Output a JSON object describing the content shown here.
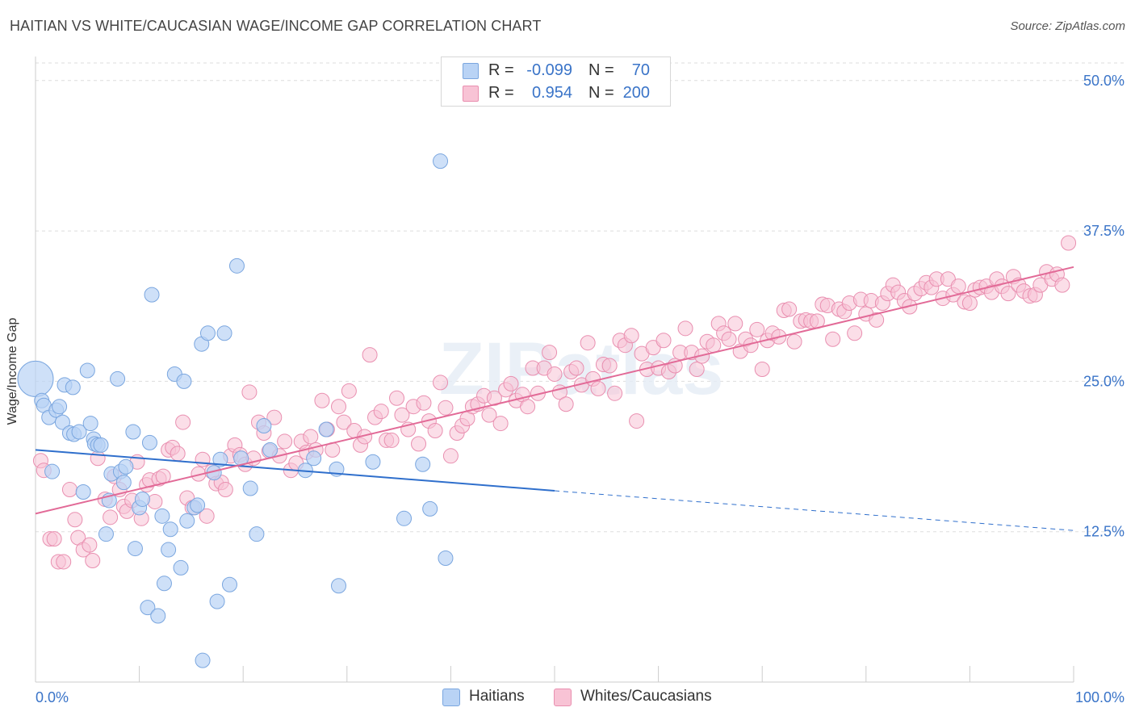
{
  "header": {
    "title": "HAITIAN VS WHITE/CAUCASIAN WAGE/INCOME GAP CORRELATION CHART",
    "source": "Source: ZipAtlas.com"
  },
  "watermark": "ZIPatlas",
  "legend": {
    "rows": [
      {
        "r_label": "R =",
        "r_value": "-0.099",
        "n_label": "N =",
        "n_value": "70"
      },
      {
        "r_label": "R =",
        "r_value": "0.954",
        "n_label": "N =",
        "n_value": "200"
      }
    ]
  },
  "bottom_legend": {
    "haitians": "Haitians",
    "whites": "Whites/Caucasians"
  },
  "colors": {
    "haitians_fill": "#b9d3f5",
    "haitians_stroke": "#7aa6df",
    "haitians_line": "#2f6fcc",
    "whites_fill": "#f8c3d5",
    "whites_stroke": "#e98fb0",
    "whites_line": "#e26a97",
    "axis_value": "#3a74c8",
    "grid": "#dddddd"
  },
  "chart_data": {
    "type": "scatter",
    "title": "HAITIAN VS WHITE/CAUCASIAN WAGE/INCOME GAP CORRELATION CHART",
    "xlabel": "",
    "ylabel": "Wage/Income Gap",
    "xlim": [
      0,
      100
    ],
    "ylim": [
      0,
      52
    ],
    "x_tick_labels": [
      "0.0%",
      "100.0%"
    ],
    "y_ticks": [
      12.5,
      25.0,
      37.5,
      50.0
    ],
    "y_tick_labels": [
      "12.5%",
      "25.0%",
      "37.5%",
      "50.0%"
    ],
    "grid": true,
    "legend_position": "top-center",
    "series": [
      {
        "name": "Haitians",
        "r": -0.099,
        "n": 70,
        "trend": {
          "x0": 0,
          "y0": 19.3,
          "x1": 50,
          "y1": 15.9,
          "dashed_to_x": 100,
          "dashed_y1": 12.6
        },
        "points": [
          [
            0,
            25.2
          ],
          [
            0.6,
            23.4
          ],
          [
            0.8,
            23.0
          ],
          [
            1.3,
            22.0
          ],
          [
            1.6,
            17.5
          ],
          [
            2.0,
            22.6
          ],
          [
            2.3,
            22.9
          ],
          [
            2.6,
            21.6
          ],
          [
            2.8,
            24.7
          ],
          [
            3.3,
            20.7
          ],
          [
            3.6,
            24.5
          ],
          [
            3.7,
            20.6
          ],
          [
            4.2,
            20.8
          ],
          [
            4.6,
            15.8
          ],
          [
            5.0,
            25.9
          ],
          [
            5.3,
            21.5
          ],
          [
            5.6,
            20.2
          ],
          [
            5.7,
            19.8
          ],
          [
            6.0,
            19.7
          ],
          [
            6.3,
            19.7
          ],
          [
            6.8,
            12.3
          ],
          [
            7.1,
            15.1
          ],
          [
            7.3,
            17.3
          ],
          [
            7.9,
            25.2
          ],
          [
            8.2,
            17.5
          ],
          [
            8.5,
            16.6
          ],
          [
            8.7,
            17.9
          ],
          [
            9.4,
            20.8
          ],
          [
            9.6,
            11.1
          ],
          [
            10.0,
            14.5
          ],
          [
            10.3,
            15.2
          ],
          [
            10.8,
            6.2
          ],
          [
            11.0,
            19.9
          ],
          [
            11.2,
            32.2
          ],
          [
            11.8,
            5.5
          ],
          [
            12.2,
            13.8
          ],
          [
            12.4,
            8.2
          ],
          [
            12.8,
            11.0
          ],
          [
            13.0,
            12.7
          ],
          [
            13.4,
            25.6
          ],
          [
            14.0,
            9.5
          ],
          [
            14.3,
            25.0
          ],
          [
            14.6,
            13.4
          ],
          [
            15.3,
            14.5
          ],
          [
            15.6,
            14.7
          ],
          [
            16.0,
            28.1
          ],
          [
            16.1,
            1.8
          ],
          [
            16.6,
            29.0
          ],
          [
            17.2,
            17.4
          ],
          [
            17.5,
            6.7
          ],
          [
            17.8,
            18.5
          ],
          [
            18.2,
            29.0
          ],
          [
            18.7,
            8.1
          ],
          [
            19.4,
            34.6
          ],
          [
            19.8,
            18.6
          ],
          [
            20.7,
            16.1
          ],
          [
            21.3,
            12.3
          ],
          [
            22.0,
            21.3
          ],
          [
            22.6,
            19.3
          ],
          [
            26.0,
            17.6
          ],
          [
            26.8,
            18.6
          ],
          [
            28.0,
            21.0
          ],
          [
            29.0,
            17.7
          ],
          [
            29.2,
            8.0
          ],
          [
            32.5,
            18.3
          ],
          [
            35.5,
            13.6
          ],
          [
            37.3,
            18.1
          ],
          [
            38.0,
            14.4
          ],
          [
            39.5,
            10.3
          ],
          [
            39.0,
            43.3
          ]
        ]
      },
      {
        "name": "Whites/Caucasians",
        "r": 0.954,
        "n": 200,
        "trend": {
          "x0": 0,
          "y0": 14.0,
          "x1": 100,
          "y1": 34.5
        },
        "points": [
          [
            0.5,
            18.4
          ],
          [
            0.8,
            17.6
          ],
          [
            1.4,
            11.9
          ],
          [
            1.8,
            11.9
          ],
          [
            2.2,
            10.0
          ],
          [
            2.7,
            10.0
          ],
          [
            3.3,
            16.0
          ],
          [
            3.8,
            13.5
          ],
          [
            4.1,
            12.0
          ],
          [
            4.6,
            11.0
          ],
          [
            5.2,
            11.4
          ],
          [
            5.5,
            10.1
          ],
          [
            6.0,
            18.6
          ],
          [
            6.7,
            15.2
          ],
          [
            7.2,
            13.7
          ],
          [
            7.6,
            17.1
          ],
          [
            8.1,
            16.0
          ],
          [
            8.5,
            14.6
          ],
          [
            8.8,
            14.2
          ],
          [
            9.3,
            15.1
          ],
          [
            9.8,
            18.3
          ],
          [
            10.2,
            13.6
          ],
          [
            10.7,
            16.4
          ],
          [
            11.0,
            16.8
          ],
          [
            11.5,
            15.0
          ],
          [
            11.9,
            16.9
          ],
          [
            12.3,
            17.1
          ],
          [
            12.8,
            19.3
          ],
          [
            13.2,
            19.5
          ],
          [
            13.7,
            19.0
          ],
          [
            14.2,
            21.6
          ],
          [
            14.6,
            15.3
          ],
          [
            15.1,
            14.5
          ],
          [
            15.7,
            17.3
          ],
          [
            16.1,
            18.5
          ],
          [
            16.5,
            13.8
          ],
          [
            17.0,
            17.5
          ],
          [
            17.4,
            16.5
          ],
          [
            17.9,
            16.6
          ],
          [
            18.3,
            16.0
          ],
          [
            18.8,
            18.8
          ],
          [
            19.2,
            19.7
          ],
          [
            19.7,
            18.9
          ],
          [
            20.2,
            18.1
          ],
          [
            20.6,
            24.1
          ],
          [
            21.0,
            18.6
          ],
          [
            21.5,
            21.6
          ],
          [
            22.0,
            20.7
          ],
          [
            22.5,
            19.2
          ],
          [
            23.0,
            22.0
          ],
          [
            23.5,
            18.8
          ],
          [
            24.0,
            20.0
          ],
          [
            24.6,
            17.6
          ],
          [
            25.1,
            18.2
          ],
          [
            25.6,
            20.0
          ],
          [
            26.1,
            19.1
          ],
          [
            26.5,
            20.4
          ],
          [
            27.0,
            19.3
          ],
          [
            27.6,
            23.4
          ],
          [
            28.1,
            21.0
          ],
          [
            28.6,
            19.3
          ],
          [
            29.2,
            22.9
          ],
          [
            29.7,
            21.6
          ],
          [
            30.2,
            24.2
          ],
          [
            30.7,
            20.9
          ],
          [
            31.3,
            19.7
          ],
          [
            31.7,
            20.4
          ],
          [
            32.2,
            27.2
          ],
          [
            32.7,
            22.0
          ],
          [
            33.3,
            22.5
          ],
          [
            33.8,
            20.1
          ],
          [
            34.3,
            20.1
          ],
          [
            34.8,
            23.6
          ],
          [
            35.3,
            22.2
          ],
          [
            35.9,
            21.0
          ],
          [
            36.4,
            22.9
          ],
          [
            36.9,
            19.8
          ],
          [
            37.4,
            23.2
          ],
          [
            37.9,
            21.7
          ],
          [
            38.5,
            20.9
          ],
          [
            39.0,
            24.9
          ],
          [
            39.5,
            22.8
          ],
          [
            40.0,
            18.8
          ],
          [
            40.6,
            20.7
          ],
          [
            41.1,
            21.3
          ],
          [
            41.6,
            21.9
          ],
          [
            42.1,
            22.9
          ],
          [
            42.6,
            23.1
          ],
          [
            43.2,
            23.8
          ],
          [
            43.7,
            22.2
          ],
          [
            44.2,
            23.6
          ],
          [
            44.8,
            21.5
          ],
          [
            45.3,
            24.3
          ],
          [
            45.8,
            24.8
          ],
          [
            46.3,
            23.4
          ],
          [
            46.9,
            23.9
          ],
          [
            47.4,
            22.9
          ],
          [
            47.9,
            26.1
          ],
          [
            48.4,
            24.0
          ],
          [
            49.0,
            26.1
          ],
          [
            49.5,
            27.4
          ],
          [
            50.0,
            25.6
          ],
          [
            50.5,
            24.1
          ],
          [
            51.1,
            23.1
          ],
          [
            51.6,
            25.8
          ],
          [
            52.1,
            26.1
          ],
          [
            52.6,
            24.7
          ],
          [
            53.2,
            28.2
          ],
          [
            53.7,
            25.2
          ],
          [
            54.2,
            24.4
          ],
          [
            54.7,
            26.4
          ],
          [
            55.3,
            26.3
          ],
          [
            55.8,
            24.0
          ],
          [
            56.3,
            28.4
          ],
          [
            56.8,
            28.0
          ],
          [
            57.4,
            28.8
          ],
          [
            57.9,
            21.7
          ],
          [
            58.4,
            27.3
          ],
          [
            58.9,
            26.0
          ],
          [
            59.5,
            27.8
          ],
          [
            60.0,
            26.1
          ],
          [
            60.5,
            28.4
          ],
          [
            61.0,
            25.8
          ],
          [
            61.6,
            26.3
          ],
          [
            62.1,
            27.4
          ],
          [
            62.6,
            29.4
          ],
          [
            63.2,
            27.4
          ],
          [
            63.7,
            26.0
          ],
          [
            64.2,
            27.1
          ],
          [
            64.7,
            28.3
          ],
          [
            65.3,
            28.0
          ],
          [
            65.8,
            29.8
          ],
          [
            66.3,
            29.0
          ],
          [
            66.8,
            28.5
          ],
          [
            67.4,
            29.8
          ],
          [
            67.9,
            27.5
          ],
          [
            68.4,
            28.5
          ],
          [
            68.9,
            28.0
          ],
          [
            69.5,
            29.3
          ],
          [
            70.0,
            26.0
          ],
          [
            70.5,
            28.4
          ],
          [
            71.0,
            29.0
          ],
          [
            71.6,
            28.7
          ],
          [
            72.1,
            30.9
          ],
          [
            72.6,
            31.0
          ],
          [
            73.1,
            28.3
          ],
          [
            73.7,
            30.0
          ],
          [
            74.2,
            30.1
          ],
          [
            74.7,
            30.0
          ],
          [
            75.3,
            30.0
          ],
          [
            75.8,
            31.4
          ],
          [
            76.3,
            31.3
          ],
          [
            76.8,
            28.5
          ],
          [
            77.4,
            31.0
          ],
          [
            77.9,
            30.8
          ],
          [
            78.4,
            31.5
          ],
          [
            78.9,
            29.0
          ],
          [
            79.5,
            31.8
          ],
          [
            80.0,
            30.6
          ],
          [
            80.5,
            31.7
          ],
          [
            81.0,
            30.1
          ],
          [
            81.6,
            31.5
          ],
          [
            82.1,
            32.3
          ],
          [
            82.6,
            33.0
          ],
          [
            83.1,
            32.4
          ],
          [
            83.7,
            31.7
          ],
          [
            84.2,
            31.2
          ],
          [
            84.7,
            32.3
          ],
          [
            85.3,
            32.7
          ],
          [
            85.8,
            33.2
          ],
          [
            86.3,
            32.8
          ],
          [
            86.8,
            33.5
          ],
          [
            87.4,
            31.9
          ],
          [
            87.9,
            33.5
          ],
          [
            88.4,
            32.2
          ],
          [
            88.9,
            32.9
          ],
          [
            89.5,
            31.6
          ],
          [
            90.0,
            31.5
          ],
          [
            90.5,
            32.6
          ],
          [
            91.0,
            32.8
          ],
          [
            91.6,
            32.9
          ],
          [
            92.1,
            32.4
          ],
          [
            92.6,
            33.5
          ],
          [
            93.1,
            32.9
          ],
          [
            93.7,
            32.3
          ],
          [
            94.2,
            33.7
          ],
          [
            94.7,
            33.0
          ],
          [
            95.2,
            32.5
          ],
          [
            95.8,
            32.1
          ],
          [
            96.3,
            32.2
          ],
          [
            96.8,
            33.0
          ],
          [
            97.4,
            34.1
          ],
          [
            97.9,
            33.5
          ],
          [
            98.4,
            33.9
          ],
          [
            98.9,
            33.0
          ],
          [
            99.5,
            36.5
          ]
        ]
      }
    ]
  }
}
